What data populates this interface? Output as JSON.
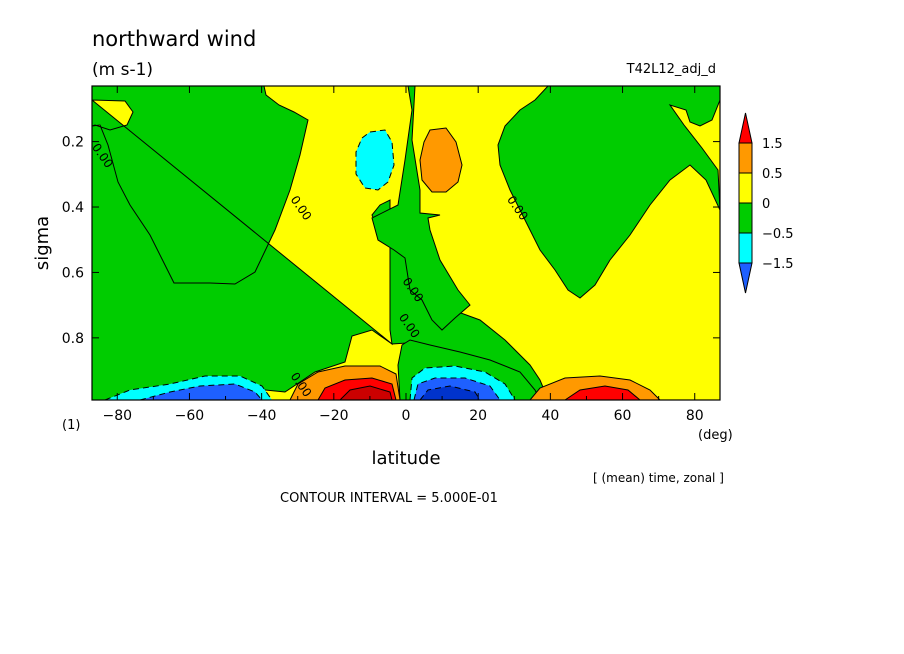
{
  "header": {
    "title": "northward wind",
    "units": "(m s-1)",
    "run_name": "T42L12_adj_d",
    "x_unit_note": "(deg)",
    "y_unit_note": "(1)",
    "averaging_note": "[ (mean) time, zonal ]",
    "contour_note": "CONTOUR INTERVAL = 5.000E-01"
  },
  "chart_data": {
    "type": "heatmap",
    "xlabel": "latitude",
    "ylabel": "sigma",
    "xlim": [
      -87,
      87
    ],
    "ylim": [
      0.99,
      0.03
    ],
    "x_ticks": [
      -80,
      -60,
      -40,
      -20,
      0,
      20,
      40,
      60,
      80
    ],
    "x_tick_labels": [
      "−80",
      "−60",
      "−40",
      "−20",
      "0",
      "20",
      "40",
      "60",
      "80"
    ],
    "y_ticks": [
      0.2,
      0.4,
      0.6,
      0.8
    ],
    "y_tick_labels": [
      "0.2",
      "0.4",
      "0.6",
      "0.8"
    ],
    "contour_interval": 0.5,
    "contour_labels": [
      {
        "text": "0.00",
        "lat": -85,
        "sigma": 0.25
      },
      {
        "text": "0.00",
        "lat": -30,
        "sigma": 0.41
      },
      {
        "text": "0.00",
        "lat": 30,
        "sigma": 0.41
      },
      {
        "text": "0.00",
        "lat": 1,
        "sigma": 0.66
      },
      {
        "text": "0.00",
        "lat": 0,
        "sigma": 0.77
      },
      {
        "text": "0.00",
        "lat": -30,
        "sigma": 0.95
      }
    ],
    "colorbar": {
      "levels": [
        -1.5,
        -0.5,
        0,
        0.5,
        1.5
      ],
      "level_labels": [
        "−1.5",
        "−0.5",
        "0",
        "0.5",
        "1.5"
      ],
      "colors": [
        "#1e60ff",
        "#00ffff",
        "#00cc00",
        "#ffff00",
        "#ff9900",
        "#ff0000"
      ]
    },
    "features": [
      {
        "lat": -50,
        "sigma": 0.99,
        "value": -1.5
      },
      {
        "lat": -20,
        "sigma": 0.99,
        "value": 2.0
      },
      {
        "lat": 10,
        "sigma": 0.99,
        "value": -2.0
      },
      {
        "lat": 50,
        "sigma": 0.99,
        "value": 1.6
      },
      {
        "lat": -12,
        "sigma": 0.25,
        "value": -0.6
      },
      {
        "lat": 10,
        "sigma": 0.24,
        "value": 0.6
      }
    ]
  }
}
